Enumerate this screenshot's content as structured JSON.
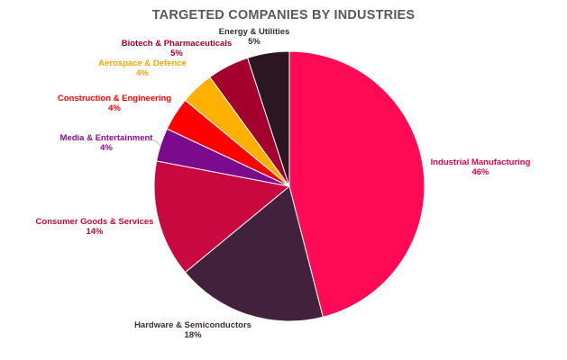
{
  "chart_data": {
    "type": "pie",
    "title": "TARGETED COMPANIES BY INDUSTRIES",
    "slices": [
      {
        "label": "Industrial Manufacturing",
        "value": 46,
        "pct_label": "46%",
        "color": "#ff0a54",
        "label_color": "#e8004d"
      },
      {
        "label": "Hardware & Semiconductors",
        "value": 18,
        "pct_label": "18%",
        "color": "#42213d",
        "label_color": "#3d2b3a"
      },
      {
        "label": "Consumer Goods & Services",
        "value": 14,
        "pct_label": "14%",
        "color": "#c9083f",
        "label_color": "#c20a3f"
      },
      {
        "label": "Media & Entertainment",
        "value": 4,
        "pct_label": "4%",
        "color": "#7b0a8c",
        "label_color": "#8a0a9a"
      },
      {
        "label": "Construction & Engineering",
        "value": 4,
        "pct_label": "4%",
        "color": "#ff0000",
        "label_color": "#ff0000"
      },
      {
        "label": "Aerospace & Defence",
        "value": 4,
        "pct_label": "4%",
        "color": "#ffb000",
        "label_color": "#f5a800"
      },
      {
        "label": "Biotech & Pharmaceuticals",
        "value": 5,
        "pct_label": "5%",
        "color": "#a3002e",
        "label_color": "#a3002e"
      },
      {
        "label": "Energy & Utilities",
        "value": 5,
        "pct_label": "5%",
        "color": "#2a1722",
        "label_color": "#3a2a33"
      }
    ],
    "legend": "none"
  }
}
